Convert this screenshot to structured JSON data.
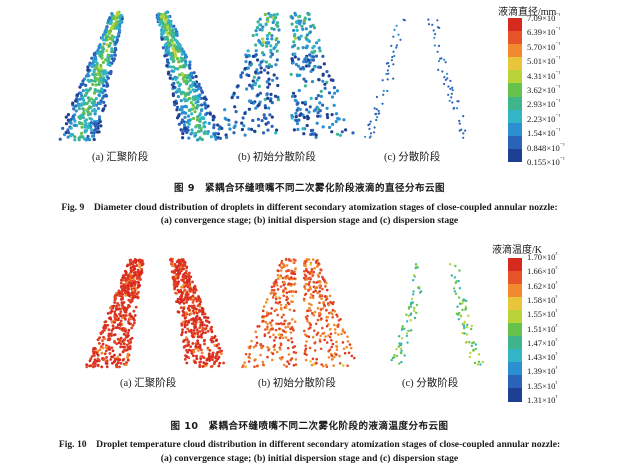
{
  "fig9": {
    "panels": [
      {
        "label": "(a) 汇聚阶段",
        "stage": "convergence"
      },
      {
        "label": "(b) 初始分散阶段",
        "stage": "initial-dispersion"
      },
      {
        "label": "(c) 分散阶段",
        "stage": "dispersion"
      }
    ],
    "colorbar": {
      "title": "液滴直径/mm",
      "ticks": [
        "7.09×10⁻¹",
        "6.39×10⁻¹",
        "5.70×10⁻¹",
        "5.01×10⁻¹",
        "4.31×10⁻¹",
        "3.62×10⁻¹",
        "2.93×10⁻¹",
        "2.23×10⁻¹",
        "1.54×10⁻¹",
        "0.848×10⁻¹",
        "0.155×10⁻¹"
      ],
      "colors": [
        "#d62a1f",
        "#e8542a",
        "#f18a2e",
        "#e9c53a",
        "#b8d43a",
        "#66c24a",
        "#3fb58c",
        "#33b5c8",
        "#2b8fd0",
        "#2b63b8",
        "#1f3f93"
      ]
    },
    "caption_cn": "图 9　紧耦合环缝喷嘴不同二次雾化阶段液滴的直径分布云图",
    "caption_en_1": "Fig. 9　Diameter cloud distribution of droplets in different secondary atomization stages of close-coupled annular nozzle:",
    "caption_en_2": "(a) convergence stage; (b) initial dispersion stage and (c) dispersion stage"
  },
  "fig10": {
    "panels": [
      {
        "label": "(a) 汇聚阶段",
        "stage": "convergence"
      },
      {
        "label": "(b) 初始分散阶段",
        "stage": "initial-dispersion"
      },
      {
        "label": "(c) 分散阶段",
        "stage": "dispersion"
      }
    ],
    "colorbar": {
      "title": "液滴温度/K",
      "ticks": [
        "1.70×10³",
        "1.66×10³",
        "1.62×10³",
        "1.58×10³",
        "1.55×10³",
        "1.51×10³",
        "1.47×10³",
        "1.43×10³",
        "1.39×10³",
        "1.35×10³",
        "1.31×10³"
      ],
      "colors": [
        "#d62a1f",
        "#e8542a",
        "#f18a2e",
        "#e9c53a",
        "#b8d43a",
        "#66c24a",
        "#3fb58c",
        "#33b5c8",
        "#2b8fd0",
        "#2b63b8",
        "#1f3f93"
      ]
    },
    "caption_cn": "图 10　紧耦合环缝喷嘴不同二次雾化阶段的液滴温度分布云图",
    "caption_en_1": "Fig. 10　Droplet temperature cloud distribution in different secondary atomization stages of close-coupled annular nozzle:",
    "caption_en_2": "(a) convergence stage; (b) initial dispersion stage and (c) dispersion stage"
  }
}
